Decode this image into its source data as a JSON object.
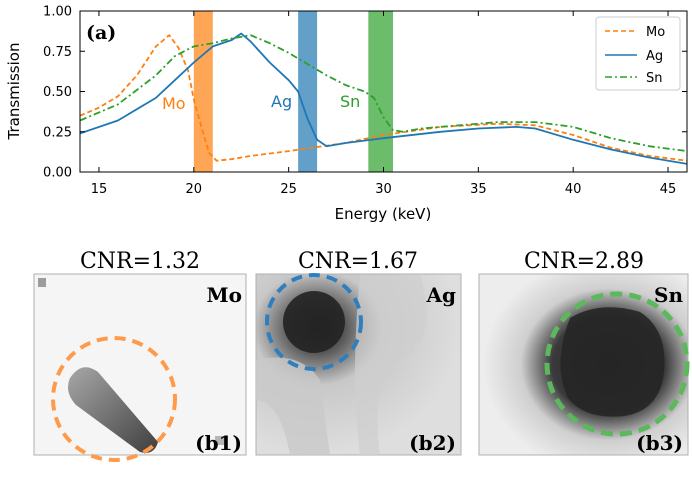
{
  "chart_data": [
    {
      "type": "line",
      "panel_label": "(a)",
      "xlabel": "Energy (keV)",
      "ylabel": "Transmission",
      "xlim": [
        14,
        46
      ],
      "ylim": [
        0,
        1
      ],
      "xticks": [
        15,
        20,
        25,
        30,
        35,
        40,
        45
      ],
      "yticks": [
        0.0,
        0.25,
        0.5,
        0.75,
        1.0
      ],
      "ytick_labels": [
        "0.00",
        "0.25",
        "0.50",
        "0.75",
        "1.00"
      ],
      "legend_position": "top-right",
      "series": [
        {
          "name": "Mo",
          "color": "#ff7f0e",
          "linestyle": "dashed",
          "x": [
            14,
            15,
            16,
            17,
            18,
            18.7,
            19.2,
            19.7,
            20.0,
            20.4,
            20.8,
            21.2,
            22,
            23,
            25,
            28,
            30,
            33,
            36,
            38,
            40,
            42,
            44,
            46
          ],
          "y": [
            0.35,
            0.4,
            0.47,
            0.6,
            0.78,
            0.85,
            0.77,
            0.63,
            0.45,
            0.28,
            0.12,
            0.07,
            0.08,
            0.1,
            0.13,
            0.18,
            0.23,
            0.28,
            0.3,
            0.29,
            0.23,
            0.15,
            0.1,
            0.07
          ]
        },
        {
          "name": "Ag",
          "color": "#1f77b4",
          "linestyle": "solid",
          "x": [
            14,
            16,
            18,
            19,
            20,
            21,
            22,
            22.5,
            23,
            24,
            25,
            25.5,
            26.0,
            26.5,
            27,
            28,
            30,
            33,
            35,
            37,
            38,
            40,
            42,
            44,
            46
          ],
          "y": [
            0.24,
            0.32,
            0.46,
            0.57,
            0.68,
            0.78,
            0.82,
            0.86,
            0.81,
            0.68,
            0.57,
            0.5,
            0.33,
            0.2,
            0.16,
            0.18,
            0.21,
            0.25,
            0.27,
            0.28,
            0.27,
            0.2,
            0.14,
            0.09,
            0.05
          ]
        },
        {
          "name": "Sn",
          "color": "#2ca02c",
          "linestyle": "dashdot",
          "x": [
            14,
            16,
            18,
            19,
            20,
            21,
            22,
            23,
            24,
            25,
            26,
            27,
            28,
            29,
            29.5,
            30,
            30.5,
            31,
            32,
            34,
            36,
            38,
            40,
            42,
            44,
            46
          ],
          "y": [
            0.32,
            0.42,
            0.6,
            0.72,
            0.78,
            0.8,
            0.83,
            0.85,
            0.8,
            0.74,
            0.67,
            0.6,
            0.54,
            0.5,
            0.46,
            0.34,
            0.26,
            0.25,
            0.27,
            0.29,
            0.31,
            0.31,
            0.28,
            0.21,
            0.16,
            0.13
          ]
        }
      ],
      "bands": [
        {
          "label": "Mo",
          "x": [
            20.0,
            21.0
          ],
          "color": "#ff7f0e"
        },
        {
          "label": "Ag",
          "x": [
            25.5,
            26.5
          ],
          "color": "#1f77b4"
        },
        {
          "label": "Sn",
          "x": [
            29.2,
            30.5
          ],
          "color": "#2ca02c"
        }
      ]
    }
  ],
  "images": [
    {
      "cnr": "CNR=1.32",
      "element": "Mo",
      "label": "(b1)",
      "color": "#ff9a4a"
    },
    {
      "cnr": "CNR=1.67",
      "element": "Ag",
      "label": "(b2)",
      "color": "#2f7fbf"
    },
    {
      "cnr": "CNR=2.89",
      "element": "Sn",
      "label": "(b3)",
      "color": "#5cb85c"
    }
  ]
}
